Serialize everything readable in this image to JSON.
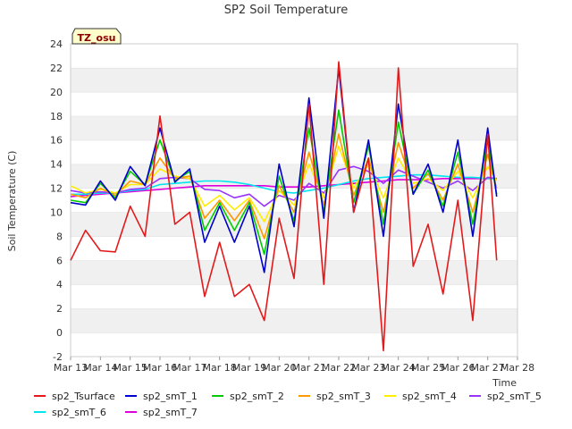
{
  "chart_data": {
    "type": "line",
    "title": "SP2 Soil Temperature",
    "xlabel": "Time",
    "ylabel": "Soil Temperature (C)",
    "badge": "TZ_osu",
    "ylim": [
      -2,
      24
    ],
    "yticks": [
      -2,
      0,
      2,
      4,
      6,
      8,
      10,
      12,
      14,
      16,
      18,
      20,
      22,
      24
    ],
    "xlim": [
      13,
      28
    ],
    "xticks": [
      13,
      14,
      15,
      16,
      17,
      18,
      19,
      20,
      21,
      22,
      23,
      24,
      25,
      26,
      27,
      28
    ],
    "xtick_labels": [
      "Mar 13",
      "Mar 14",
      "Mar 15",
      "Mar 16",
      "Mar 17",
      "Mar 18",
      "Mar 19",
      "Mar 20",
      "Mar 21",
      "Mar 22",
      "Mar 23",
      "Mar 24",
      "Mar 25",
      "Mar 26",
      "Mar 27",
      "Mar 28"
    ],
    "grid": "horizontal bands",
    "legend_position": "bottom",
    "x": [
      13.0,
      13.5,
      14.0,
      14.5,
      15.0,
      15.5,
      16.0,
      16.5,
      17.0,
      17.5,
      18.0,
      18.5,
      19.0,
      19.5,
      20.0,
      20.5,
      21.0,
      21.5,
      22.0,
      22.5,
      23.0,
      23.5,
      24.0,
      24.5,
      25.0,
      25.5,
      26.0,
      26.5,
      27.0,
      27.3
    ],
    "series": [
      {
        "name": "sp2_Tsurface",
        "color": "#e31a1c",
        "values": [
          6.0,
          8.5,
          6.8,
          6.7,
          10.5,
          8.0,
          18.0,
          9.0,
          10.0,
          3.0,
          7.5,
          3.0,
          4.0,
          1.0,
          9.5,
          4.5,
          19.0,
          4.0,
          22.5,
          10.0,
          14.5,
          -1.5,
          22.0,
          5.5,
          9.0,
          3.2,
          11.0,
          1.0,
          16.5,
          6.0
        ]
      },
      {
        "name": "sp2_smT_1",
        "color": "#0000cc",
        "values": [
          10.8,
          10.6,
          12.6,
          11.0,
          13.8,
          12.2,
          17.0,
          12.5,
          13.6,
          7.5,
          10.5,
          7.5,
          10.5,
          5.0,
          14.0,
          8.8,
          19.5,
          9.5,
          22.0,
          10.0,
          16.0,
          8.0,
          19.0,
          11.5,
          14.0,
          10.0,
          16.0,
          8.0,
          17.0,
          11.3
        ]
      },
      {
        "name": "sp2_smT_2",
        "color": "#00cc00",
        "values": [
          11.0,
          10.8,
          12.4,
          11.2,
          13.4,
          12.3,
          16.0,
          12.6,
          13.4,
          8.5,
          10.8,
          8.5,
          10.8,
          6.5,
          13.0,
          9.3,
          17.0,
          10.0,
          18.5,
          10.8,
          15.5,
          9.0,
          17.5,
          11.5,
          13.5,
          10.5,
          15.0,
          9.0,
          16.0,
          11.5
        ]
      },
      {
        "name": "sp2_smT_3",
        "color": "#ff9900",
        "values": [
          11.5,
          11.2,
          12.0,
          11.4,
          12.6,
          12.3,
          14.5,
          12.8,
          13.0,
          9.5,
          11.0,
          9.3,
          11.0,
          7.8,
          12.2,
          10.0,
          15.0,
          10.6,
          16.5,
          11.4,
          14.5,
          10.0,
          15.8,
          12.0,
          13.2,
          11.0,
          14.0,
          10.0,
          14.8,
          12.0
        ]
      },
      {
        "name": "sp2_smT_4",
        "color": "#ffee00",
        "values": [
          12.2,
          11.6,
          11.9,
          11.6,
          12.3,
          12.3,
          13.6,
          13.0,
          12.8,
          10.5,
          11.4,
          10.2,
          11.2,
          9.2,
          11.8,
          10.6,
          14.0,
          11.2,
          15.5,
          12.0,
          14.0,
          11.2,
          14.5,
          12.4,
          12.8,
          11.8,
          13.4,
          11.2,
          13.8,
          12.6
        ]
      },
      {
        "name": "sp2_smT_5",
        "color": "#9933ff",
        "values": [
          11.8,
          11.6,
          11.7,
          11.6,
          11.9,
          12.0,
          12.8,
          12.9,
          12.8,
          11.9,
          11.8,
          11.2,
          11.5,
          10.5,
          11.4,
          11.0,
          12.4,
          11.6,
          13.5,
          13.8,
          13.4,
          12.4,
          13.5,
          13.0,
          12.5,
          12.0,
          12.6,
          11.8,
          12.9,
          12.8
        ]
      },
      {
        "name": "sp2_smT_6",
        "color": "#00e5ee",
        "values": [
          11.5,
          11.5,
          11.6,
          11.6,
          11.8,
          11.9,
          12.3,
          12.4,
          12.5,
          12.6,
          12.6,
          12.5,
          12.3,
          12.0,
          11.7,
          11.6,
          11.8,
          12.0,
          12.3,
          12.6,
          12.8,
          12.9,
          13.0,
          13.1,
          13.1,
          13.0,
          12.9,
          12.9,
          12.8,
          12.8
        ]
      },
      {
        "name": "sp2_smT_7",
        "color": "#dd00dd",
        "values": [
          11.3,
          11.4,
          11.5,
          11.6,
          11.7,
          11.8,
          11.9,
          12.0,
          12.1,
          12.2,
          12.2,
          12.2,
          12.2,
          12.2,
          12.1,
          12.1,
          12.1,
          12.2,
          12.3,
          12.4,
          12.5,
          12.6,
          12.7,
          12.7,
          12.7,
          12.8,
          12.8,
          12.8,
          12.8,
          12.8
        ]
      }
    ]
  }
}
